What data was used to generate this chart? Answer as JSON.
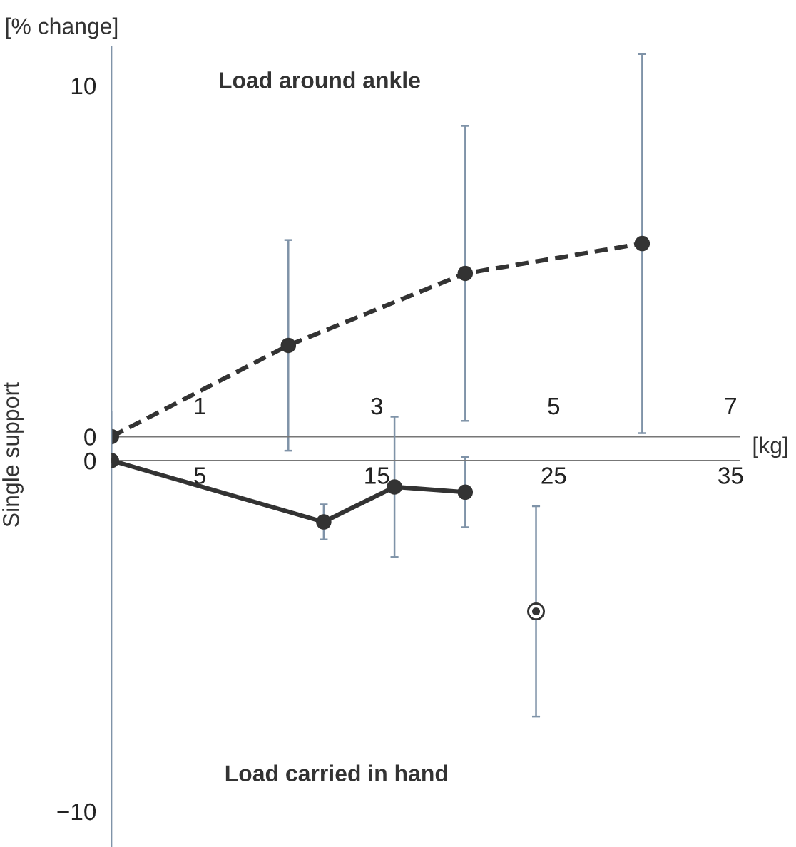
{
  "chart_data": [
    {
      "type": "line",
      "title": "Load around ankle",
      "ylabel": "[% change]",
      "xlabel": "[kg]",
      "xlim": [
        0,
        7.1
      ],
      "xticks": [
        1,
        3,
        5,
        7
      ],
      "ylim": [
        -0.6,
        11.1
      ],
      "yticks": [
        0,
        10
      ],
      "grid": false,
      "legend": false,
      "marker": "circle",
      "series": [
        {
          "x": [
            0,
            2,
            4,
            6
          ],
          "values": [
            0,
            2.6,
            4.65,
            5.5
          ],
          "errors": [
            null,
            3.0,
            4.2,
            5.4
          ],
          "color": "#333333",
          "line_style": "dashed"
        }
      ]
    },
    {
      "type": "line",
      "title": "Load carried in hand",
      "ylabel": "Single support",
      "xlim": [
        0,
        35.5
      ],
      "xticks": [
        5,
        15,
        25,
        35
      ],
      "ylim": [
        -11.0,
        1.4
      ],
      "yticks": [
        -10,
        0
      ],
      "grid": false,
      "legend": false,
      "marker": "circle",
      "series": [
        {
          "x": [
            0,
            12,
            16,
            20
          ],
          "values": [
            0,
            -1.75,
            -0.75,
            -0.9
          ],
          "errors": [
            null,
            0.5,
            2.0,
            1.0
          ],
          "color": "#333333",
          "line_style": "solid"
        },
        {
          "type": "scatter",
          "x": [
            24
          ],
          "values": [
            -4.3
          ],
          "errors": [
            3.0
          ],
          "color": "#333333"
        }
      ]
    }
  ]
}
